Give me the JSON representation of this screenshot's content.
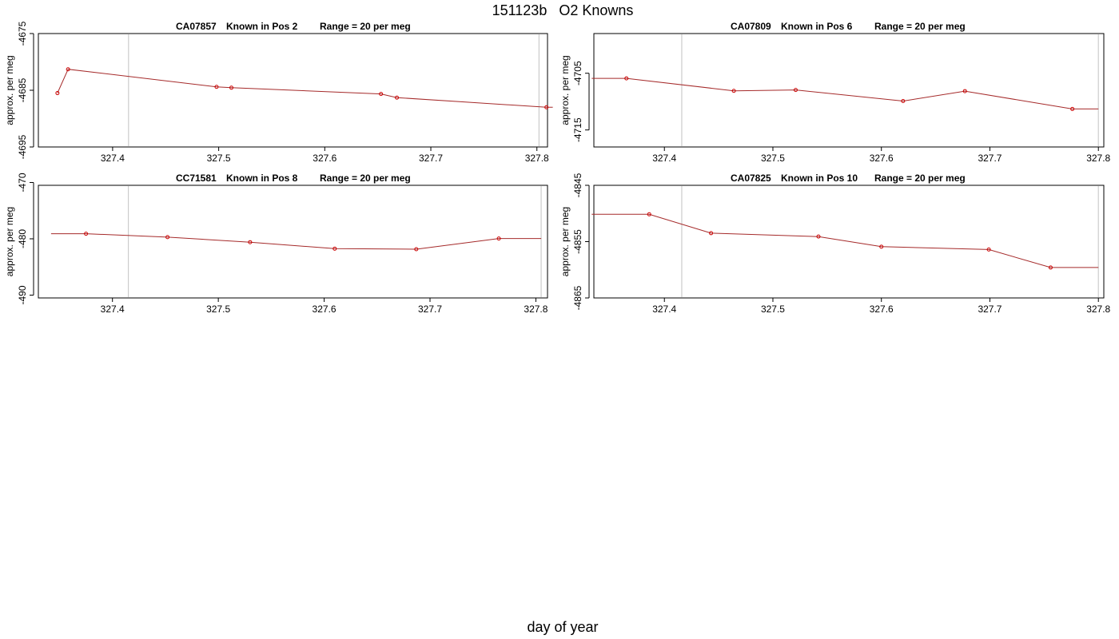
{
  "figure": {
    "title": "151123b   O2 Knowns",
    "xlabel": "day of year"
  },
  "colors": {
    "series_line": "#a52a2a",
    "series_point": "#cc0000",
    "marker_line": "#cccccc",
    "axis": "#000000"
  },
  "chart_data": [
    {
      "type": "line",
      "title_parts": [
        "CA07857",
        "Known in Pos 2",
        "Range = 20 per meg"
      ],
      "ylabel": "approx. per meg",
      "xlim": [
        327.33,
        327.81
      ],
      "ylim": [
        -4695,
        -4675
      ],
      "xticks": [
        327.4,
        327.5,
        327.6,
        327.7,
        327.8
      ],
      "yticks": [
        -4675,
        -4685,
        -4695
      ],
      "vlines": [
        327.415,
        327.802
      ],
      "x": [
        327.348,
        327.358,
        327.498,
        327.512,
        327.653,
        327.668,
        327.809
      ],
      "y": [
        -4685.5,
        -4681.3,
        -4684.4,
        -4684.55,
        -4685.65,
        -4686.3,
        -4688.0
      ],
      "line_from": 327.348,
      "line_to": 327.815
    },
    {
      "type": "line",
      "title_parts": [
        "CA07809",
        "Known in Pos 6",
        "Range = 20 per meg"
      ],
      "ylabel": "approx. per meg",
      "xlim": [
        327.335,
        327.805
      ],
      "ylim": [
        -4718,
        -4698
      ],
      "xticks": [
        327.4,
        327.5,
        327.6,
        327.7,
        327.8
      ],
      "yticks": [
        -4705,
        -4715
      ],
      "vlines": [
        327.416,
        327.8
      ],
      "x": [
        327.365,
        327.464,
        327.521,
        327.62,
        327.677,
        327.776
      ],
      "y": [
        -4705.9,
        -4708.1,
        -4707.95,
        -4709.9,
        -4708.15,
        -4711.3
      ],
      "line_from": 327.333,
      "line_to": 327.8
    },
    {
      "type": "line",
      "title_parts": [
        "CC71581",
        "Known in Pos 8",
        "Range = 20 per meg"
      ],
      "ylabel": "approx. per meg",
      "xlim": [
        327.33,
        327.811
      ],
      "ylim": [
        -490.5,
        -470.5
      ],
      "xticks": [
        327.4,
        327.5,
        327.6,
        327.7,
        327.8
      ],
      "yticks": [
        -470,
        -480,
        -490
      ],
      "vlines": [
        327.415,
        327.805
      ],
      "x": [
        327.375,
        327.452,
        327.53,
        327.61,
        327.687,
        327.765
      ],
      "y": [
        -479.1,
        -479.7,
        -480.6,
        -481.75,
        -481.85,
        -479.95
      ],
      "line_from": 327.342,
      "line_to": 327.805
    },
    {
      "type": "line",
      "title_parts": [
        "CA07825",
        "Known in Pos 10",
        "Range = 20 per meg"
      ],
      "ylabel": "approx. per meg",
      "xlim": [
        327.335,
        327.805
      ],
      "ylim": [
        -4865,
        -4845
      ],
      "xticks": [
        327.4,
        327.5,
        327.6,
        327.7,
        327.8
      ],
      "yticks": [
        -4845,
        -4855,
        -4865
      ],
      "vlines": [
        327.416,
        327.8
      ],
      "x": [
        327.386,
        327.443,
        327.542,
        327.6,
        327.699,
        327.756
      ],
      "y": [
        -4850.15,
        -4853.5,
        -4854.1,
        -4855.9,
        -4856.4,
        -4859.6
      ],
      "line_from": 327.333,
      "line_to": 327.8
    }
  ]
}
